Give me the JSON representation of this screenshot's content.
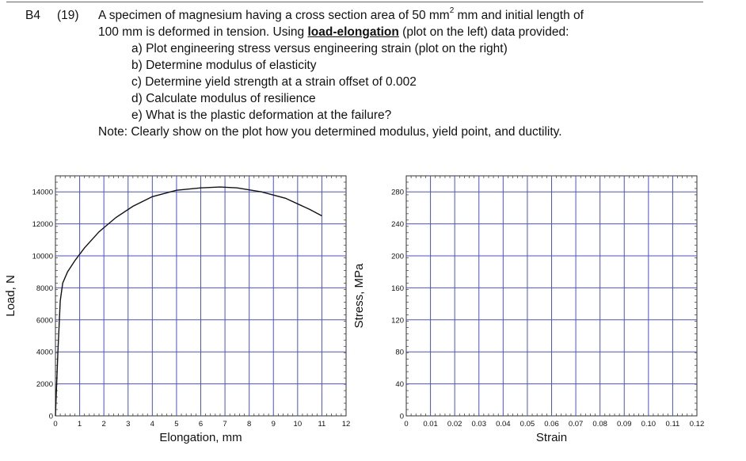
{
  "problem": {
    "id": "B4",
    "points": "(19)",
    "line1_a": "A specimen of magnesium having a cross section area of 50 mm",
    "line1_sup": "2",
    "line1_b": " mm and initial length of",
    "line2_a": "100 mm is deformed in tension. Using ",
    "line2_kw": "load-elongation",
    "line2_b": " (plot on the left) data provided:",
    "items": [
      "a)  Plot engineering stress versus engineering strain (plot on the right)",
      "b)  Determine modulus of elasticity",
      "c)  Determine yield strength at a strain offset of 0.002",
      "d)  Calculate modulus of resilience",
      "e)  What is the plastic deformation at the failure?"
    ],
    "note": "Note: Clearly show on the plot how you determined modulus, yield point, and ductility."
  },
  "chart_data": [
    {
      "type": "line",
      "title": "",
      "xlabel": "Elongation, mm",
      "ylabel": "Load, N",
      "xlim": [
        0,
        12
      ],
      "ylim": [
        0,
        15000
      ],
      "xticks": [
        "0",
        "1",
        "2",
        "3",
        "4",
        "5",
        "6",
        "7",
        "8",
        "9",
        "10",
        "11",
        "12"
      ],
      "yticks": [
        "0",
        "2000",
        "4000",
        "6000",
        "8000",
        "10000",
        "12000",
        "14000"
      ],
      "grid": true,
      "series": [
        {
          "x": [
            0,
            0.1,
            0.2,
            0.3,
            0.5,
            0.8,
            1.2,
            1.8,
            2.5,
            3.2,
            4.0,
            5.0,
            6.0,
            6.8,
            7.5,
            8.5,
            9.5,
            10.5,
            11.0
          ],
          "y": [
            0,
            4000,
            7200,
            8300,
            9000,
            9700,
            10500,
            11500,
            12400,
            13100,
            13700,
            14100,
            14250,
            14300,
            14250,
            14000,
            13600,
            12900,
            12500
          ]
        }
      ]
    },
    {
      "type": "line",
      "title": "",
      "xlabel": "Strain",
      "ylabel": "Stress, MPa",
      "xlim": [
        0,
        0.12
      ],
      "ylim": [
        0,
        300
      ],
      "xticks": [
        "0",
        "0.01",
        "0.02",
        "0.03",
        "0.04",
        "0.05",
        "0.06",
        "0.07",
        "0.08",
        "0.09",
        "0.10",
        "0.11",
        "0.12"
      ],
      "yticks": [
        "0",
        "40",
        "80",
        "120",
        "160",
        "200",
        "240",
        "280"
      ],
      "grid": true,
      "series": []
    }
  ]
}
